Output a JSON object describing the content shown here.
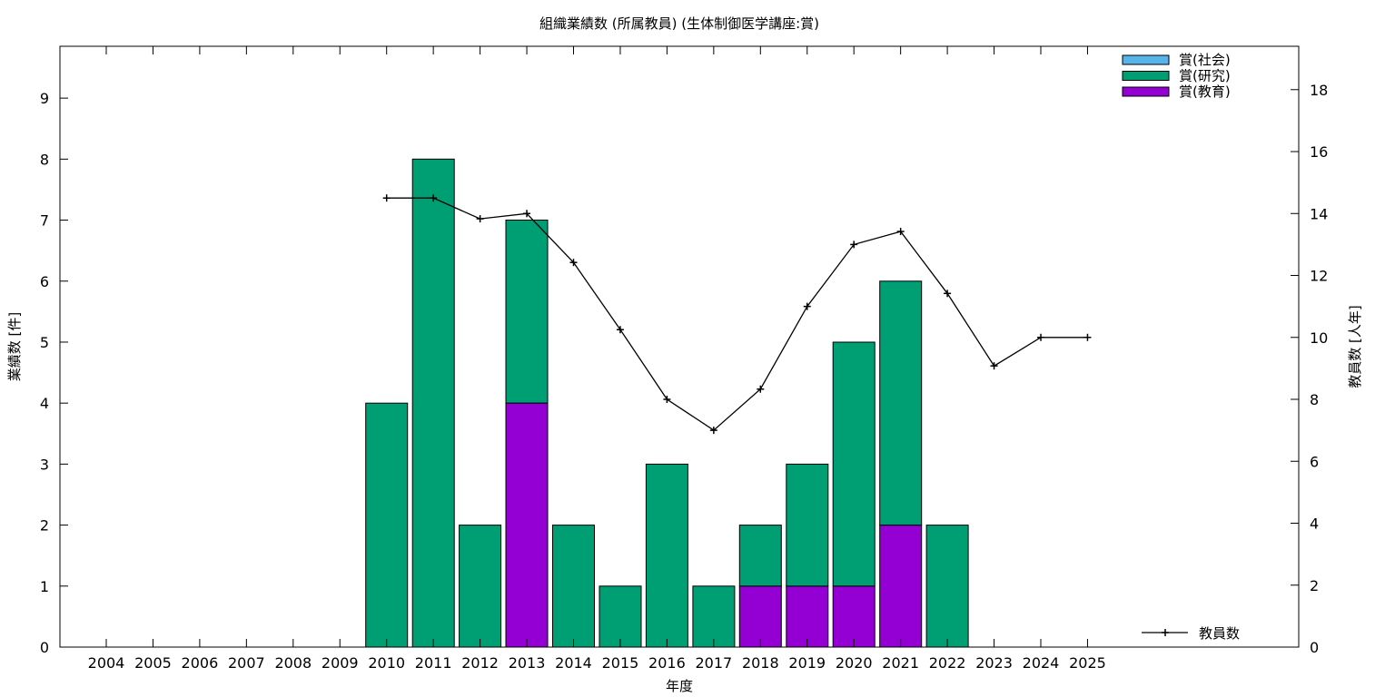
{
  "chart_data": {
    "type": "bar",
    "stacked": true,
    "title": "組織業績数 (所属教員) (生体制御医学講座:賞)",
    "xlabel": "年度",
    "ylabel": "業績数 [件]",
    "y2label": "教員数 [人年]",
    "categories": [
      "2004",
      "2005",
      "2006",
      "2007",
      "2008",
      "2009",
      "2010",
      "2011",
      "2012",
      "2013",
      "2014",
      "2015",
      "2016",
      "2017",
      "2018",
      "2019",
      "2020",
      "2021",
      "2022",
      "2023",
      "2024",
      "2025"
    ],
    "ylim": [
      0,
      9.85
    ],
    "y2lim": [
      0,
      19.4
    ],
    "yticks": [
      0,
      1,
      2,
      3,
      4,
      5,
      6,
      7,
      8,
      9
    ],
    "y2ticks": [
      0,
      2,
      4,
      6,
      8,
      10,
      12,
      14,
      16,
      18
    ],
    "legend_position": "top-right",
    "grid": false,
    "series": [
      {
        "name": "賞(社会)",
        "color": "#56b4e9",
        "values": [
          0,
          0,
          0,
          0,
          0,
          0,
          0,
          0,
          0,
          0,
          0,
          0,
          0,
          0,
          0,
          0,
          0,
          0,
          0,
          0,
          0,
          0
        ]
      },
      {
        "name": "賞(研究)",
        "color": "#009e73",
        "values": [
          0,
          0,
          0,
          0,
          0,
          0,
          4,
          8,
          2,
          3,
          2,
          1,
          3,
          1,
          1,
          2,
          4,
          4,
          2,
          0,
          0,
          0
        ]
      },
      {
        "name": "賞(教育)",
        "color": "#9400d3",
        "values": [
          0,
          0,
          0,
          0,
          0,
          0,
          0,
          0,
          0,
          4,
          0,
          0,
          0,
          0,
          1,
          1,
          1,
          2,
          0,
          0,
          0,
          0
        ]
      }
    ],
    "stack_order": [
      "賞(教育)",
      "賞(研究)",
      "賞(社会)"
    ],
    "line_series": {
      "name": "教員数",
      "color": "#000000",
      "axis": "y2",
      "x": [
        "2010",
        "2011",
        "2012",
        "2013",
        "2014",
        "2015",
        "2016",
        "2017",
        "2018",
        "2019",
        "2020",
        "2021",
        "2022",
        "2023",
        "2024",
        "2025"
      ],
      "values": [
        14.5,
        14.5,
        13.83,
        14.0,
        12.42,
        10.25,
        8.0,
        7.0,
        8.33,
        11.0,
        13.0,
        13.42,
        11.42,
        9.08,
        10.0,
        10.0
      ]
    }
  }
}
